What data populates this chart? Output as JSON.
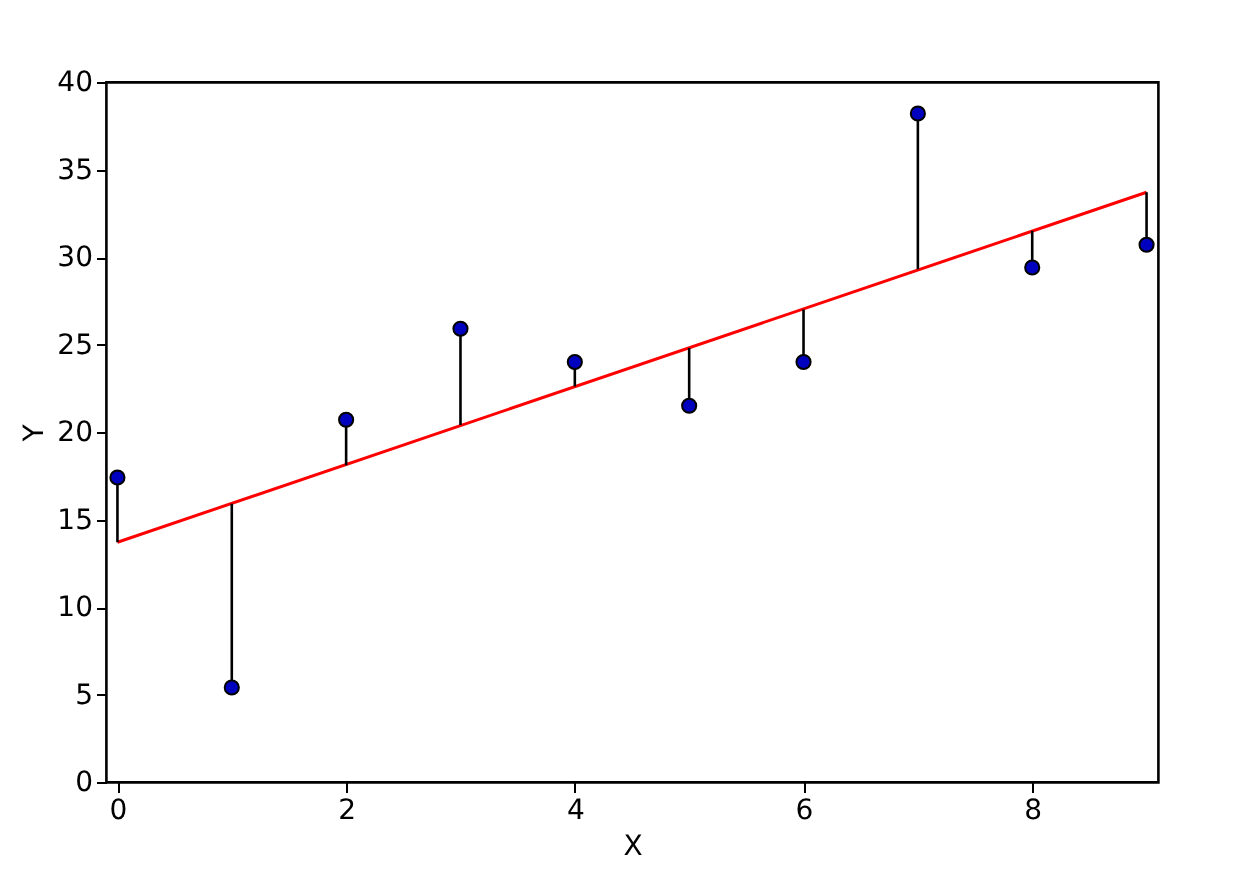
{
  "chart_data": {
    "type": "scatter",
    "xlabel": "X",
    "ylabel": "Y",
    "x": [
      0,
      1,
      2,
      3,
      4,
      5,
      6,
      7,
      8,
      9
    ],
    "xlim": [
      -0.1,
      9.1
    ],
    "ylim": [
      0,
      40
    ],
    "xticks": [
      0,
      2,
      4,
      6,
      8
    ],
    "yticks": [
      0,
      5,
      10,
      15,
      20,
      25,
      30,
      35,
      40
    ],
    "grid": false,
    "series": [
      {
        "color": "#0000bf",
        "marker": "circle",
        "values": [
          17.4,
          5.4,
          20.7,
          25.9,
          24.0,
          21.5,
          24.0,
          38.2,
          29.4,
          30.7
        ],
        "errors": [
          [
            13.7,
            17.4
          ],
          [
            5.4,
            15.9
          ],
          [
            18.1,
            20.7
          ],
          [
            20.4,
            25.9
          ],
          [
            22.6,
            24.0
          ],
          [
            21.5,
            24.8
          ],
          [
            24.0,
            27.0
          ],
          [
            29.3,
            38.2
          ],
          [
            29.4,
            31.5
          ],
          [
            30.7,
            33.7
          ]
        ]
      },
      {
        "type": "line",
        "color": "#ff0000",
        "line_style": "solid",
        "x": [
          0,
          9
        ],
        "values": [
          13.7,
          33.7
        ]
      }
    ]
  }
}
